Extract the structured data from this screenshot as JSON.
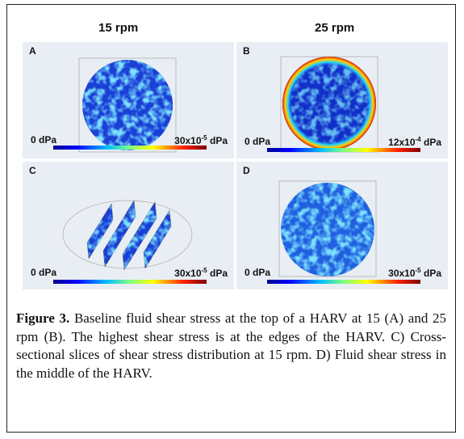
{
  "header": {
    "left": "15 rpm",
    "right": "25 rpm"
  },
  "panels": [
    {
      "letter": "A",
      "min_label": "0 dPa",
      "max_base": "30x10",
      "max_exp": "-5",
      "max_unit": "dPa"
    },
    {
      "letter": "B",
      "min_label": "0 dPa",
      "max_base": "12x10",
      "max_exp": "-4",
      "max_unit": "dPa"
    },
    {
      "letter": "C",
      "min_label": "0 dPa",
      "max_base": "30x10",
      "max_exp": "-5",
      "max_unit": "dPa"
    },
    {
      "letter": "D",
      "min_label": "0 dPa",
      "max_base": "30x10",
      "max_exp": "-5",
      "max_unit": "dPa"
    }
  ],
  "caption": {
    "label": "Figure 3.",
    "text": "Baseline fluid shear stress at the top of a HARV at 15 (A) and 25 rpm (B). The highest shear stress is at the edges of the HARV. C) Cross-sectional slices of shear stress distribution at 15 rpm. D) Fluid shear stress in the middle of the HARV."
  }
}
